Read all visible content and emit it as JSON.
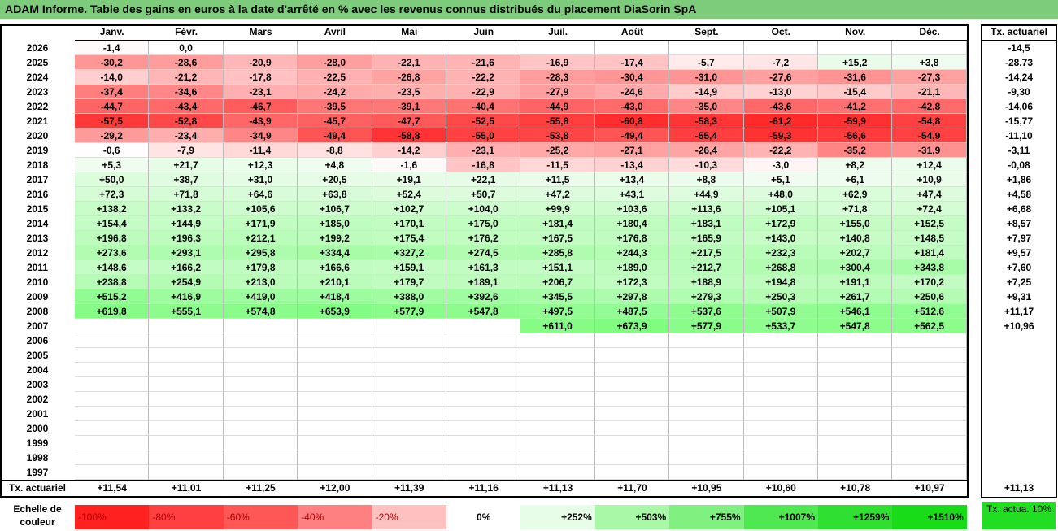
{
  "title": "ADAM Informe. Table des gains en euros à la date d'arrêté en % avec les revenus connus distribués du placement DiaSorin SpA",
  "months": [
    "Janv.",
    "Févr.",
    "Mars",
    "Avril",
    "Mai",
    "Juin",
    "Juil.",
    "Août",
    "Sept.",
    "Oct.",
    "Nov.",
    "Déc."
  ],
  "actuarial_header": "Tx. actuariel",
  "rows": [
    {
      "year": "2026",
      "values": [
        "-1,4",
        "0,0",
        "",
        "",
        "",
        "",
        "",
        "",
        "",
        "",
        "",
        ""
      ],
      "act": "-14,5"
    },
    {
      "year": "2025",
      "values": [
        "-30,2",
        "-28,6",
        "-20,9",
        "-28,0",
        "-22,1",
        "-21,6",
        "-16,9",
        "-17,4",
        "-5,7",
        "-7,2",
        "+15,2",
        "+3,8"
      ],
      "act": "-28,73"
    },
    {
      "year": "2024",
      "values": [
        "-14,0",
        "-21,2",
        "-17,8",
        "-22,5",
        "-26,8",
        "-22,2",
        "-28,3",
        "-30,4",
        "-31,0",
        "-27,6",
        "-31,6",
        "-27,3"
      ],
      "act": "-14,24"
    },
    {
      "year": "2023",
      "values": [
        "-37,4",
        "-34,6",
        "-23,1",
        "-24,2",
        "-23,5",
        "-22,9",
        "-27,9",
        "-24,6",
        "-14,9",
        "-13,0",
        "-15,4",
        "-21,1"
      ],
      "act": "-9,30"
    },
    {
      "year": "2022",
      "values": [
        "-44,7",
        "-43,4",
        "-46,7",
        "-39,5",
        "-39,1",
        "-40,4",
        "-44,9",
        "-43,0",
        "-35,0",
        "-43,6",
        "-41,2",
        "-42,8"
      ],
      "act": "-14,06"
    },
    {
      "year": "2021",
      "values": [
        "-57,5",
        "-52,8",
        "-43,9",
        "-45,7",
        "-47,7",
        "-52,5",
        "-55,8",
        "-60,8",
        "-58,3",
        "-61,2",
        "-59,9",
        "-54,8"
      ],
      "act": "-15,77"
    },
    {
      "year": "2020",
      "values": [
        "-29,2",
        "-23,4",
        "-34,9",
        "-49,4",
        "-58,8",
        "-55,0",
        "-53,8",
        "-49,4",
        "-55,4",
        "-59,3",
        "-56,6",
        "-54,9"
      ],
      "act": "-11,10"
    },
    {
      "year": "2019",
      "values": [
        "-0,6",
        "-7,9",
        "-11,4",
        "-8,8",
        "-14,2",
        "-23,1",
        "-25,2",
        "-27,1",
        "-26,4",
        "-22,2",
        "-35,2",
        "-31,9"
      ],
      "act": "-3,11"
    },
    {
      "year": "2018",
      "values": [
        "+5,3",
        "+21,7",
        "+12,3",
        "+4,8",
        "-1,6",
        "-16,8",
        "-11,5",
        "-13,4",
        "-10,3",
        "-3,0",
        "+8,2",
        "+12,4"
      ],
      "act": "-0,08"
    },
    {
      "year": "2017",
      "values": [
        "+50,0",
        "+38,7",
        "+31,0",
        "+20,5",
        "+19,1",
        "+22,1",
        "+11,5",
        "+13,4",
        "+8,8",
        "+5,1",
        "+6,1",
        "+10,9"
      ],
      "act": "+1,86"
    },
    {
      "year": "2016",
      "values": [
        "+72,3",
        "+71,8",
        "+64,6",
        "+63,8",
        "+52,4",
        "+50,7",
        "+47,2",
        "+43,1",
        "+44,9",
        "+48,0",
        "+62,9",
        "+47,4"
      ],
      "act": "+4,58"
    },
    {
      "year": "2015",
      "values": [
        "+138,2",
        "+133,2",
        "+105,6",
        "+106,7",
        "+102,7",
        "+104,0",
        "+99,9",
        "+103,6",
        "+113,6",
        "+105,1",
        "+71,8",
        "+72,4"
      ],
      "act": "+6,68"
    },
    {
      "year": "2014",
      "values": [
        "+154,4",
        "+144,9",
        "+171,9",
        "+185,0",
        "+170,1",
        "+175,0",
        "+181,4",
        "+180,4",
        "+183,1",
        "+172,9",
        "+155,0",
        "+152,5"
      ],
      "act": "+8,57"
    },
    {
      "year": "2013",
      "values": [
        "+196,8",
        "+196,3",
        "+212,1",
        "+199,2",
        "+175,4",
        "+176,2",
        "+167,5",
        "+176,8",
        "+165,9",
        "+143,0",
        "+140,8",
        "+148,5"
      ],
      "act": "+7,97"
    },
    {
      "year": "2012",
      "values": [
        "+273,6",
        "+293,1",
        "+295,8",
        "+334,4",
        "+327,2",
        "+274,5",
        "+285,8",
        "+244,3",
        "+217,5",
        "+232,3",
        "+202,7",
        "+181,4"
      ],
      "act": "+9,57"
    },
    {
      "year": "2011",
      "values": [
        "+148,6",
        "+166,2",
        "+179,8",
        "+166,6",
        "+159,1",
        "+161,3",
        "+151,1",
        "+189,0",
        "+212,7",
        "+268,8",
        "+300,4",
        "+343,8"
      ],
      "act": "+7,60"
    },
    {
      "year": "2010",
      "values": [
        "+238,8",
        "+254,9",
        "+213,0",
        "+210,1",
        "+179,7",
        "+189,1",
        "+206,7",
        "+172,3",
        "+188,9",
        "+194,8",
        "+191,1",
        "+170,2"
      ],
      "act": "+7,25"
    },
    {
      "year": "2009",
      "values": [
        "+515,2",
        "+416,9",
        "+419,0",
        "+418,4",
        "+388,0",
        "+392,6",
        "+345,5",
        "+297,8",
        "+279,3",
        "+250,3",
        "+261,7",
        "+250,6"
      ],
      "act": "+9,31"
    },
    {
      "year": "2008",
      "values": [
        "+619,8",
        "+555,1",
        "+574,8",
        "+653,9",
        "+577,9",
        "+547,8",
        "+497,5",
        "+487,5",
        "+537,6",
        "+507,9",
        "+546,1",
        "+512,6"
      ],
      "act": "+11,17"
    },
    {
      "year": "2007",
      "values": [
        "",
        "",
        "",
        "",
        "",
        "",
        "+611,0",
        "+673,9",
        "+577,9",
        "+533,7",
        "+547,8",
        "+562,5"
      ],
      "act": "+10,96"
    },
    {
      "year": "2006",
      "values": [
        "",
        "",
        "",
        "",
        "",
        "",
        "",
        "",
        "",
        "",
        "",
        ""
      ],
      "act": ""
    },
    {
      "year": "2005",
      "values": [
        "",
        "",
        "",
        "",
        "",
        "",
        "",
        "",
        "",
        "",
        "",
        ""
      ],
      "act": ""
    },
    {
      "year": "2004",
      "values": [
        "",
        "",
        "",
        "",
        "",
        "",
        "",
        "",
        "",
        "",
        "",
        ""
      ],
      "act": ""
    },
    {
      "year": "2003",
      "values": [
        "",
        "",
        "",
        "",
        "",
        "",
        "",
        "",
        "",
        "",
        "",
        ""
      ],
      "act": ""
    },
    {
      "year": "2002",
      "values": [
        "",
        "",
        "",
        "",
        "",
        "",
        "",
        "",
        "",
        "",
        "",
        ""
      ],
      "act": ""
    },
    {
      "year": "2001",
      "values": [
        "",
        "",
        "",
        "",
        "",
        "",
        "",
        "",
        "",
        "",
        "",
        ""
      ],
      "act": ""
    },
    {
      "year": "2000",
      "values": [
        "",
        "",
        "",
        "",
        "",
        "",
        "",
        "",
        "",
        "",
        "",
        ""
      ],
      "act": ""
    },
    {
      "year": "1999",
      "values": [
        "",
        "",
        "",
        "",
        "",
        "",
        "",
        "",
        "",
        "",
        "",
        ""
      ],
      "act": ""
    },
    {
      "year": "1998",
      "values": [
        "",
        "",
        "",
        "",
        "",
        "",
        "",
        "",
        "",
        "",
        "",
        ""
      ],
      "act": ""
    },
    {
      "year": "1997",
      "values": [
        "",
        "",
        "",
        "",
        "",
        "",
        "",
        "",
        "",
        "",
        "",
        ""
      ],
      "act": ""
    }
  ],
  "summary_label": "Tx. actuariel",
  "summary_values": [
    "+11,54",
    "+11,01",
    "+11,25",
    "+12,00",
    "+11,39",
    "+11,16",
    "+11,13",
    "+11,70",
    "+10,95",
    "+10,60",
    "+10,78",
    "+10,97"
  ],
  "summary_overall": "+11,13",
  "scale_label": "Echelle de couleur",
  "scale": [
    {
      "label": "-100%",
      "color": "#ff2020",
      "align": "left"
    },
    {
      "label": "-80%",
      "color": "#ff4040",
      "align": "left"
    },
    {
      "label": "-60%",
      "color": "#ff5656",
      "align": "left"
    },
    {
      "label": "-40%",
      "color": "#ff8080",
      "align": "left"
    },
    {
      "label": "-20%",
      "color": "#ffc0c0",
      "align": "left"
    },
    {
      "label": "0%",
      "color": "#ffffff",
      "align": "center"
    },
    {
      "label": "+252%",
      "color": "#e8fde8",
      "align": "right"
    },
    {
      "label": "+503%",
      "color": "#a8f8a8",
      "align": "right"
    },
    {
      "label": "+755%",
      "color": "#80f080",
      "align": "right"
    },
    {
      "label": "+1007%",
      "color": "#50e850",
      "align": "right"
    },
    {
      "label": "+1259%",
      "color": "#30e030",
      "align": "right"
    },
    {
      "label": "+1510%",
      "color": "#18dc18",
      "align": "right"
    }
  ],
  "scale_actuarial_label": "Tx. actua. 10%",
  "scale_actuarial_color": "#22dd22"
}
